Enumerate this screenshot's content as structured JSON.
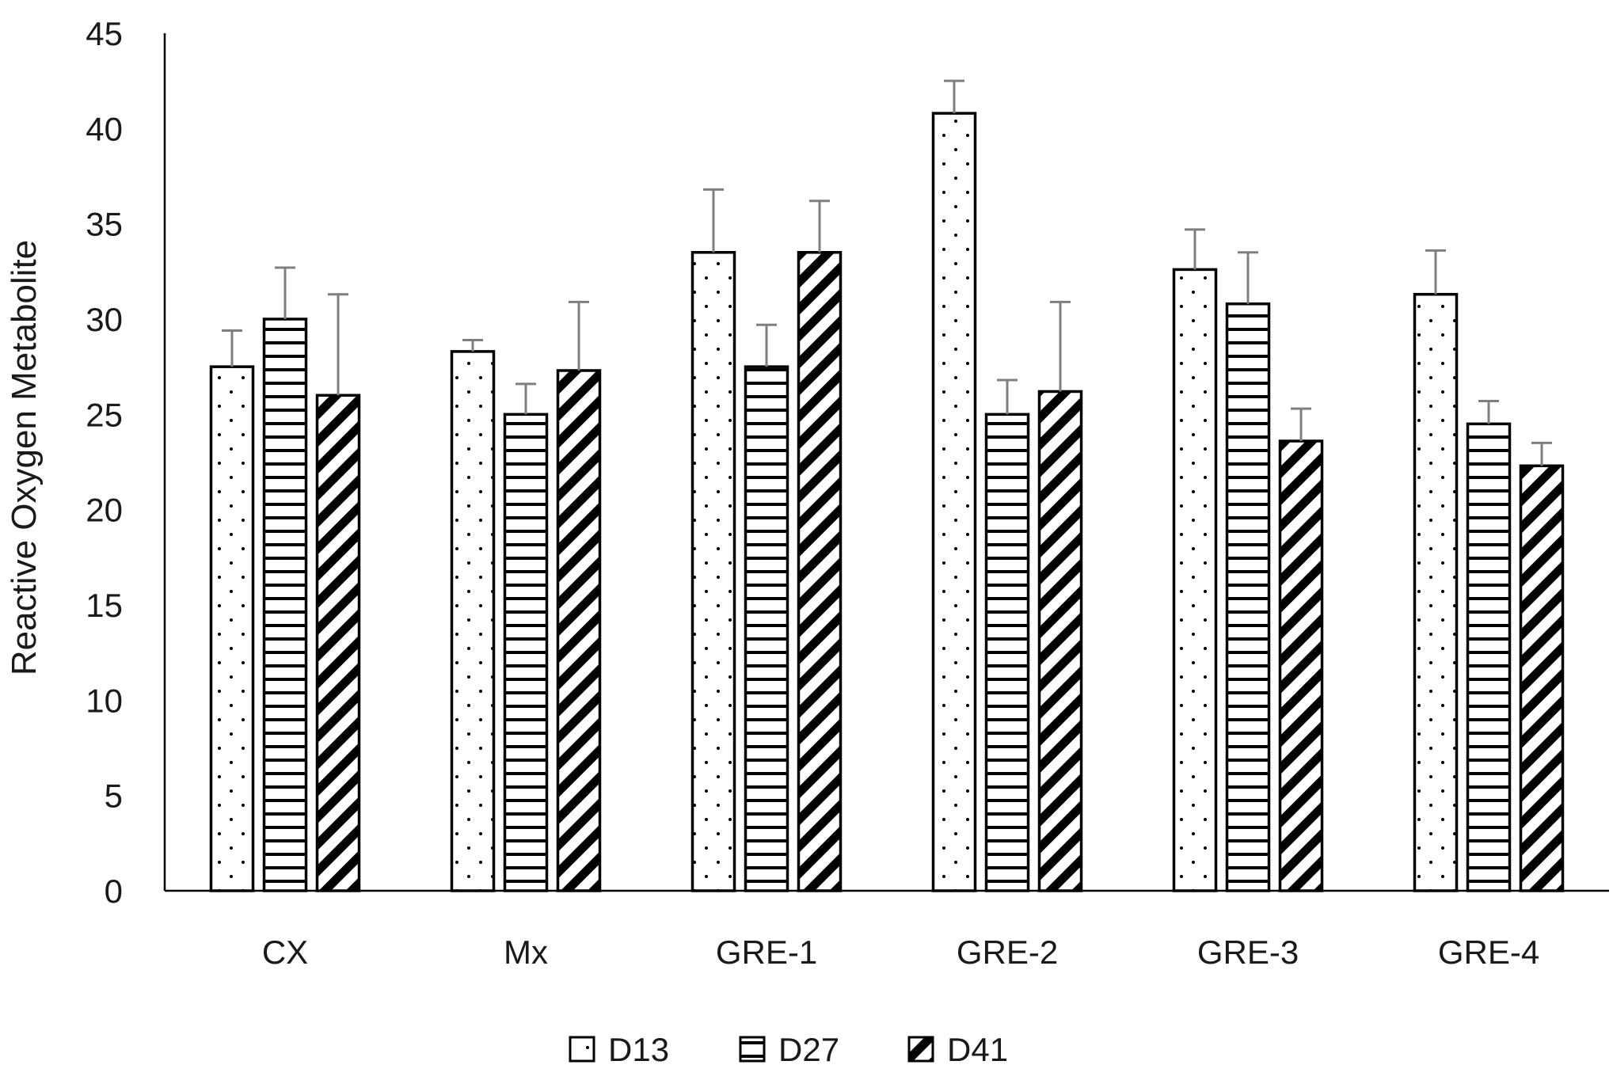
{
  "chart_data": {
    "type": "bar",
    "title": "",
    "xlabel": "",
    "ylabel": "Reactive Oxygen Metabolite",
    "ylim": [
      0,
      45
    ],
    "yticks": [
      0,
      5,
      10,
      15,
      20,
      25,
      30,
      35,
      40,
      45
    ],
    "grid": false,
    "legend_position": "bottom",
    "categories": [
      "CX",
      "Mx",
      "GRE-1",
      "GRE-2",
      "GRE-3",
      "GRE-4"
    ],
    "series": [
      {
        "name": "D13",
        "pattern": "dots",
        "values": [
          27.5,
          28.3,
          33.5,
          40.8,
          32.6,
          31.3
        ],
        "errors": [
          1.9,
          0.6,
          3.3,
          1.7,
          2.1,
          2.3
        ]
      },
      {
        "name": "D27",
        "pattern": "horizontal-lines",
        "values": [
          30.0,
          25.0,
          27.5,
          25.0,
          30.8,
          24.5
        ],
        "errors": [
          2.7,
          1.6,
          2.2,
          1.8,
          2.7,
          1.2
        ]
      },
      {
        "name": "D41",
        "pattern": "diagonal-stripes",
        "values": [
          26.0,
          27.3,
          33.5,
          26.2,
          23.6,
          22.3
        ],
        "errors": [
          5.3,
          3.6,
          2.7,
          4.7,
          1.7,
          1.2
        ]
      }
    ],
    "colors": {
      "bar_fill": "#ffffff",
      "bar_stroke": "#000000",
      "error_bar": "#7f7f7f",
      "axis": "#000000"
    }
  }
}
